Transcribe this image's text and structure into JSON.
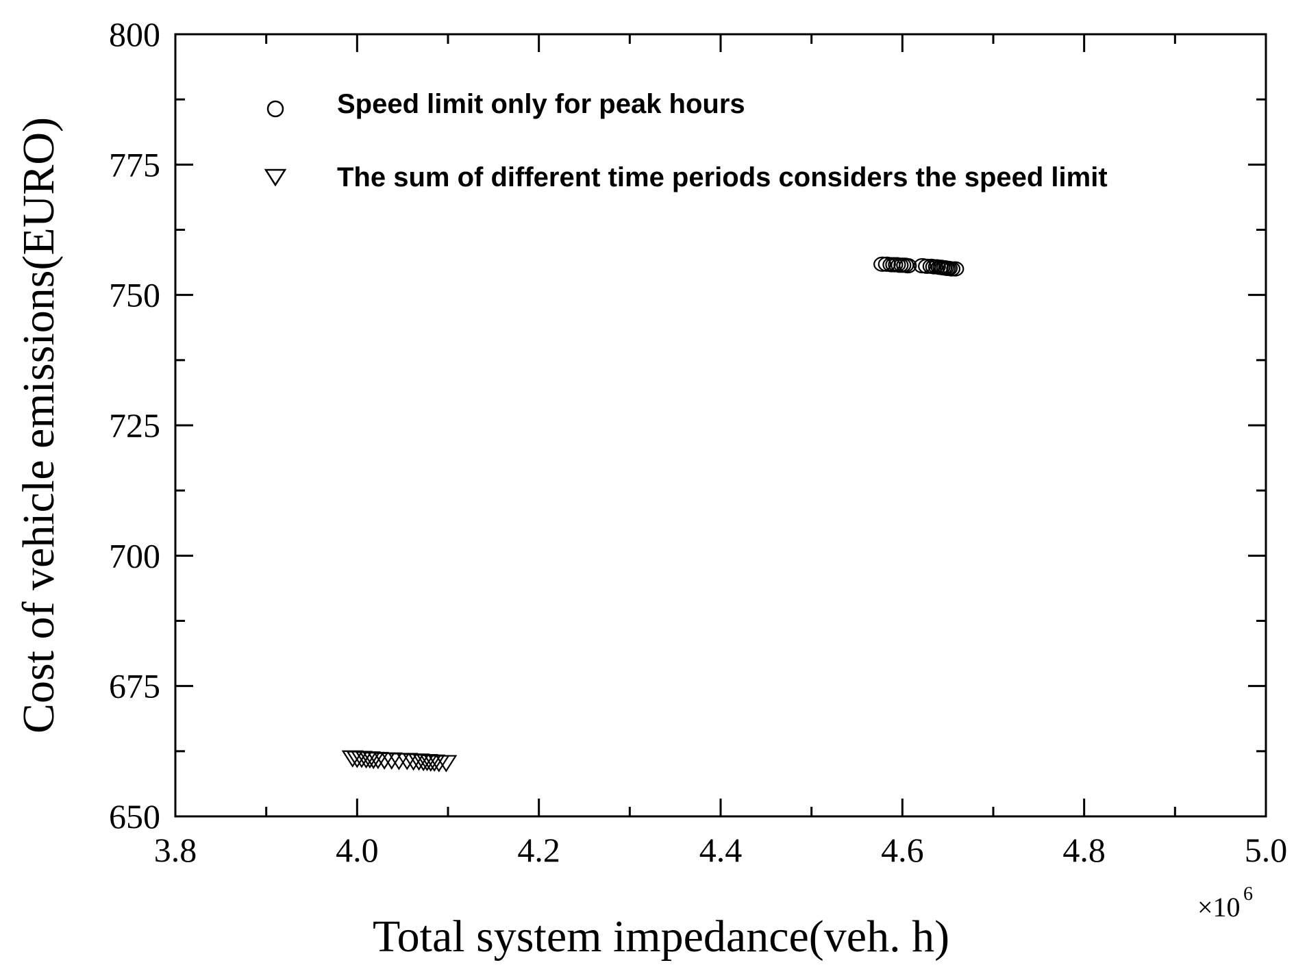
{
  "chart_data": {
    "type": "scatter",
    "title": "",
    "xlabel": "Total system impedance(veh. h)",
    "ylabel": "Cost of vehicle emissions(EURO)",
    "x_multiplier_label": "×10",
    "x_multiplier_exponent": "6",
    "xlim": [
      3.8,
      5.0
    ],
    "ylim": [
      650,
      800
    ],
    "x_ticks": [
      3.8,
      4.0,
      4.2,
      4.4,
      4.6,
      4.8,
      5.0
    ],
    "x_tick_labels": [
      "3.8",
      "4.0",
      "4.2",
      "4.4",
      "4.6",
      "4.8",
      "5.0"
    ],
    "y_ticks": [
      650,
      675,
      700,
      725,
      750,
      775,
      800
    ],
    "y_tick_labels": [
      "650",
      "675",
      "700",
      "725",
      "750",
      "775",
      "800"
    ],
    "grid": false,
    "legend_position": "top-left",
    "series": [
      {
        "name": "Speed limit  only for peak hours",
        "marker": "circle",
        "color": "#000000",
        "points": [
          [
            4.578,
            755.9
          ],
          [
            4.583,
            755.9
          ],
          [
            4.588,
            755.8
          ],
          [
            4.591,
            755.8
          ],
          [
            4.594,
            755.8
          ],
          [
            4.597,
            755.7
          ],
          [
            4.6,
            755.7
          ],
          [
            4.603,
            755.7
          ],
          [
            4.606,
            755.6
          ],
          [
            4.622,
            755.6
          ],
          [
            4.627,
            755.5
          ],
          [
            4.632,
            755.5
          ],
          [
            4.635,
            755.4
          ],
          [
            4.638,
            755.4
          ],
          [
            4.641,
            755.3
          ],
          [
            4.643,
            755.3
          ],
          [
            4.645,
            755.2
          ],
          [
            4.647,
            755.2
          ],
          [
            4.649,
            755.1
          ],
          [
            4.651,
            755.1
          ],
          [
            4.654,
            755.0
          ],
          [
            4.658,
            755.0
          ]
        ]
      },
      {
        "name": "The sum of different time periods considers the speed limit",
        "marker": "triangle-down",
        "color": "#000000",
        "points": [
          [
            3.995,
            661.2
          ],
          [
            4.0,
            661.1
          ],
          [
            4.005,
            661.1
          ],
          [
            4.01,
            661.0
          ],
          [
            4.014,
            661.0
          ],
          [
            4.018,
            660.9
          ],
          [
            4.023,
            660.9
          ],
          [
            4.03,
            660.8
          ],
          [
            4.038,
            660.8
          ],
          [
            4.046,
            660.7
          ],
          [
            4.055,
            660.7
          ],
          [
            4.062,
            660.6
          ],
          [
            4.068,
            660.6
          ],
          [
            4.073,
            660.5
          ],
          [
            4.077,
            660.5
          ],
          [
            4.081,
            660.4
          ],
          [
            4.085,
            660.4
          ],
          [
            4.09,
            660.3
          ],
          [
            4.098,
            660.3
          ]
        ]
      }
    ]
  }
}
